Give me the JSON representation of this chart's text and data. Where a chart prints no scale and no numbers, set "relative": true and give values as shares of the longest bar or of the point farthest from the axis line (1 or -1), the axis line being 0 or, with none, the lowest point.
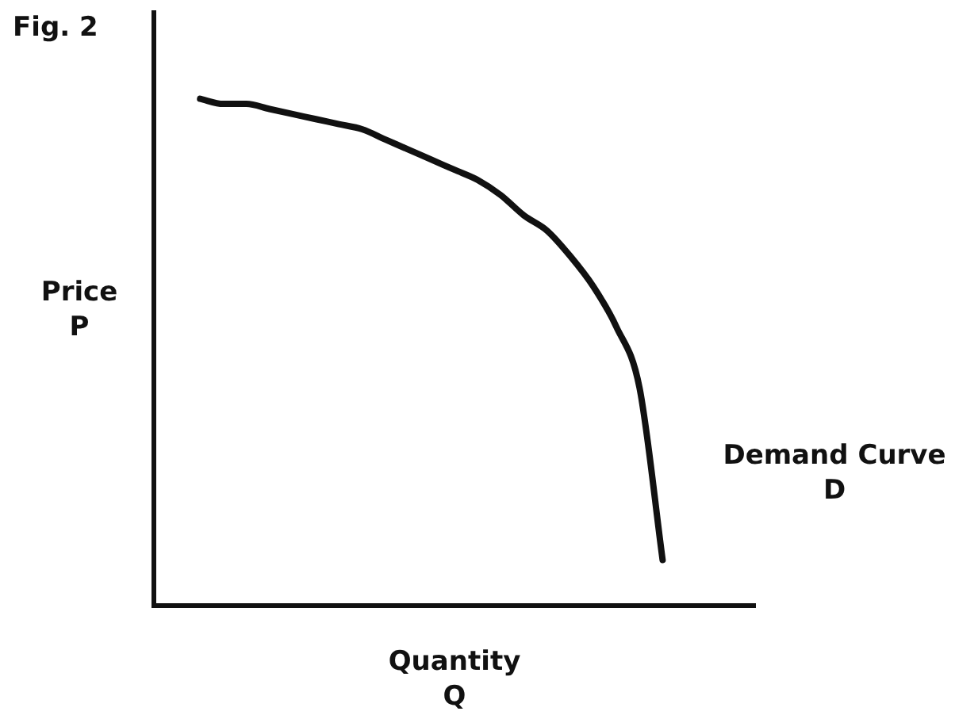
{
  "chart_data": {
    "type": "line",
    "title": "Fig. 2",
    "xlabel": "Quantity\nQ",
    "ylabel": "Price\nP",
    "annotations": [
      "Demand Curve\nD"
    ],
    "relative": true,
    "legend": false,
    "grid": false,
    "categories": [
      null,
      null,
      null,
      null,
      null,
      null,
      null,
      null,
      null,
      null,
      null,
      null,
      null,
      null,
      null,
      null,
      null,
      null,
      null,
      null,
      null,
      null,
      null,
      null,
      null,
      null,
      null
    ],
    "series": [
      {
        "color": "#111111",
        "values": [
          null,
          null,
          1.0,
          0.99,
          0.99,
          0.98,
          0.97,
          0.96,
          0.95,
          0.94,
          0.92,
          0.9,
          0.88,
          0.86,
          0.84,
          0.81,
          0.77,
          0.74,
          0.69,
          0.63,
          0.55,
          0.43,
          0.09,
          null,
          null,
          null,
          null
        ]
      }
    ]
  }
}
